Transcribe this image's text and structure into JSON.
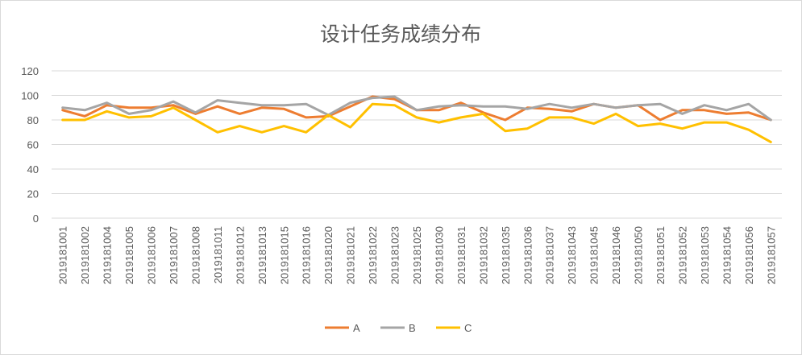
{
  "chart_data": {
    "type": "line",
    "title": "设计任务成绩分布",
    "xlabel": "",
    "ylabel": "",
    "ylim": [
      0,
      120
    ],
    "yticks": [
      0,
      20,
      40,
      60,
      80,
      100,
      120
    ],
    "grid": true,
    "legend_position": "bottom",
    "categories": [
      "2019181001",
      "2019181002",
      "2019181004",
      "2019181005",
      "2019181006",
      "2019181007",
      "2019181008",
      "2019181011",
      "2019181012",
      "2019181013",
      "2019181015",
      "2019181016",
      "2019181020",
      "2019181021",
      "2019181022",
      "2019181023",
      "2019181025",
      "2019181030",
      "2019181031",
      "2019181032",
      "2019181035",
      "2019181036",
      "2019181037",
      "2019181043",
      "2019181045",
      "2019181046",
      "2019181050",
      "2019181051",
      "2019181052",
      "2019181053",
      "2019181054",
      "2019181056",
      "2019181057"
    ],
    "series": [
      {
        "name": "A",
        "color": "#ed7d31",
        "values": [
          88,
          83,
          92,
          90,
          90,
          92,
          85,
          91,
          85,
          90,
          89,
          82,
          83,
          91,
          99,
          97,
          88,
          88,
          94,
          86,
          80,
          90,
          89,
          87,
          93,
          90,
          92,
          80,
          88,
          88,
          85,
          86,
          80
        ]
      },
      {
        "name": "B",
        "color": "#a5a5a5",
        "values": [
          90,
          88,
          94,
          85,
          88,
          95,
          86,
          96,
          94,
          92,
          92,
          93,
          84,
          94,
          98,
          99,
          88,
          91,
          92,
          91,
          91,
          89,
          93,
          90,
          93,
          90,
          92,
          93,
          85,
          92,
          88,
          93,
          80
        ]
      },
      {
        "name": "C",
        "color": "#ffc000",
        "values": [
          80,
          80,
          87,
          82,
          83,
          90,
          80,
          70,
          75,
          70,
          75,
          70,
          84,
          74,
          93,
          92,
          82,
          78,
          82,
          85,
          71,
          73,
          82,
          82,
          77,
          85,
          75,
          77,
          73,
          78,
          78,
          72,
          62
        ]
      }
    ]
  }
}
